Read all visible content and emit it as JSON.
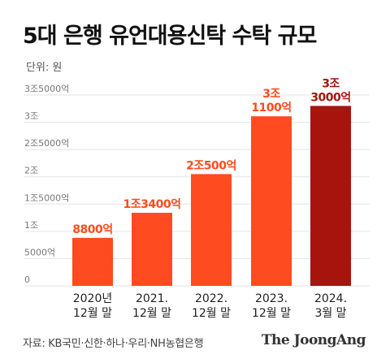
{
  "title": "5대 은행 유언대용신탁 수탁 규모",
  "unit_label": "단위: 원",
  "source": "자료: KB국민·신한·하나·우리·NH농협은행",
  "brand": "The JoongAng",
  "colors": {
    "bar": "#ff4b1f",
    "bar_highlight": "#a6140d",
    "label": "#ff4b1f",
    "label_highlight": "#a6140d",
    "grid": "#e3e3e3",
    "tick": "#777777"
  },
  "chart_data": {
    "type": "bar",
    "categories": [
      [
        "2020년",
        "12월 말"
      ],
      [
        "2021.",
        "12월 말"
      ],
      [
        "2022.",
        "12월 말"
      ],
      [
        "2023.",
        "12월 말"
      ],
      [
        "2024.",
        "3월 말"
      ]
    ],
    "values": [
      0.88,
      1.34,
      2.05,
      3.11,
      3.3
    ],
    "value_labels": [
      [
        "8800억"
      ],
      [
        "1조3400억"
      ],
      [
        "2조500억"
      ],
      [
        "3조",
        "1100억"
      ],
      [
        "3조",
        "3000억"
      ]
    ],
    "highlight_index": 4,
    "value_unit": "조 원",
    "ylim": [
      0,
      3.5
    ],
    "yticks": [
      0,
      0.5,
      1,
      1.5,
      2,
      2.5,
      3,
      3.5
    ],
    "ytick_labels": [
      "0",
      "5000억",
      "1조",
      "1조5000억",
      "2조",
      "2조5000억",
      "3조",
      "3조5000억"
    ],
    "grid": true,
    "legend": "none",
    "title": "5대 은행 유언대용신탁 수탁 규모",
    "xlabel": "",
    "ylabel": ""
  }
}
